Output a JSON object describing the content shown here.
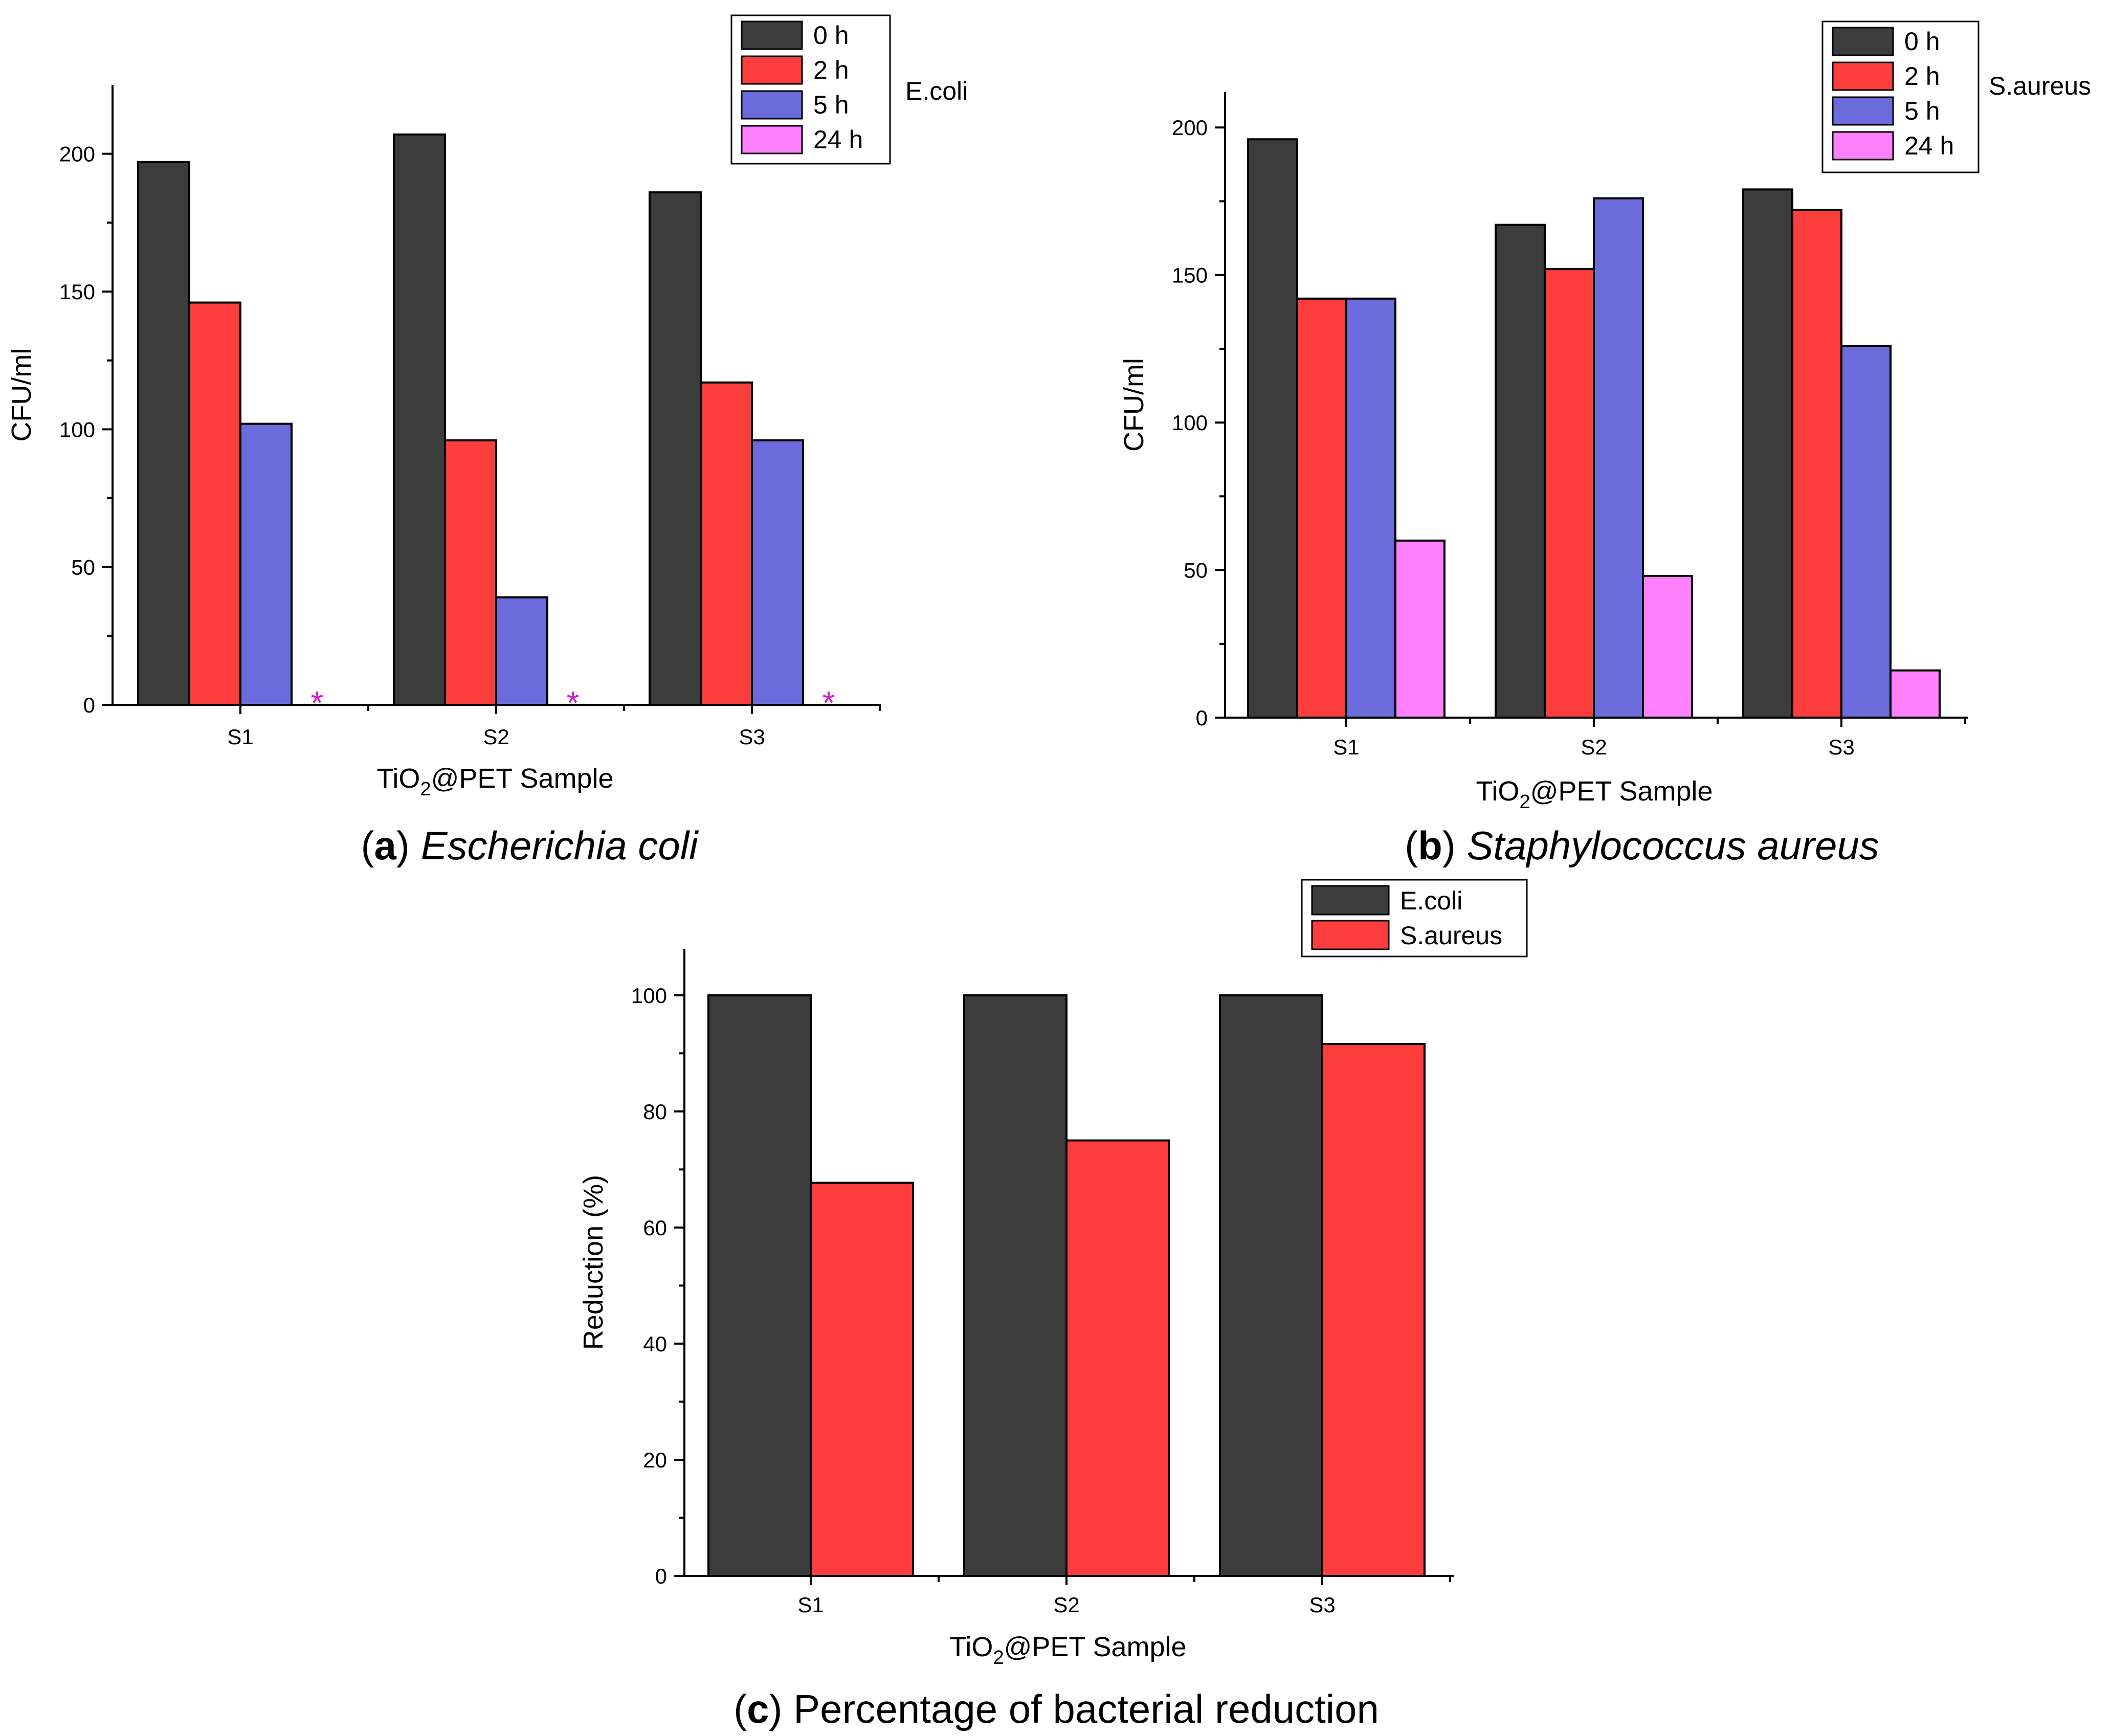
{
  "colors": {
    "0 h": "#3c3c3c",
    "2 h": "#fe3d3d",
    "5 h": "#6b6bdb",
    "24 h": "#ff80ff",
    "E.coli": "#3c3c3c",
    "S.aureus": "#fe3d3d",
    "marker": "#cc22cc"
  },
  "chart_data": [
    {
      "id": "a",
      "type": "bar",
      "categories": [
        "S1",
        "S2",
        "S3"
      ],
      "series": [
        {
          "name": "0 h",
          "values": [
            197,
            207,
            186
          ]
        },
        {
          "name": "2 h",
          "values": [
            146,
            96,
            117
          ]
        },
        {
          "name": "5 h",
          "values": [
            102,
            39,
            96
          ]
        },
        {
          "name": "24 h",
          "values": [
            0,
            0,
            0
          ]
        }
      ],
      "zero_marker": "*",
      "legend_title": "E.coli",
      "xlabel": "TiO₂@PET Sample",
      "ylabel": "CFU/ml",
      "yticks": [
        0,
        50,
        100,
        150,
        200
      ],
      "ylim": [
        0,
        225
      ],
      "caption": {
        "letter": "a",
        "text": "Escherichia coli"
      }
    },
    {
      "id": "b",
      "type": "bar",
      "categories": [
        "S1",
        "S2",
        "S3"
      ],
      "series": [
        {
          "name": "0 h",
          "values": [
            196,
            167,
            179
          ]
        },
        {
          "name": "2 h",
          "values": [
            142,
            152,
            172
          ]
        },
        {
          "name": "5 h",
          "values": [
            142,
            176,
            126
          ]
        },
        {
          "name": "24 h",
          "values": [
            60,
            48,
            16
          ]
        }
      ],
      "legend_title": "S.aureus",
      "xlabel": "TiO₂@PET Sample",
      "ylabel": "CFU/ml",
      "yticks": [
        0,
        50,
        100,
        150,
        200
      ],
      "ylim": [
        0,
        212
      ],
      "caption": {
        "letter": "b",
        "text": "Staphylococcus aureus"
      }
    },
    {
      "id": "c",
      "type": "bar",
      "categories": [
        "S1",
        "S2",
        "S3"
      ],
      "series": [
        {
          "name": "E.coli",
          "values": [
            100,
            100,
            100
          ]
        },
        {
          "name": "S.aureus",
          "values": [
            67.7,
            75,
            91.6
          ]
        }
      ],
      "xlabel": "TiO₂@PET Sample",
      "ylabel": "Reduction (%)",
      "yticks": [
        0,
        20,
        40,
        60,
        80,
        100
      ],
      "ylim": [
        0,
        108
      ],
      "caption": {
        "letter": "c",
        "text": "Percentage of bacterial reduction"
      }
    }
  ]
}
